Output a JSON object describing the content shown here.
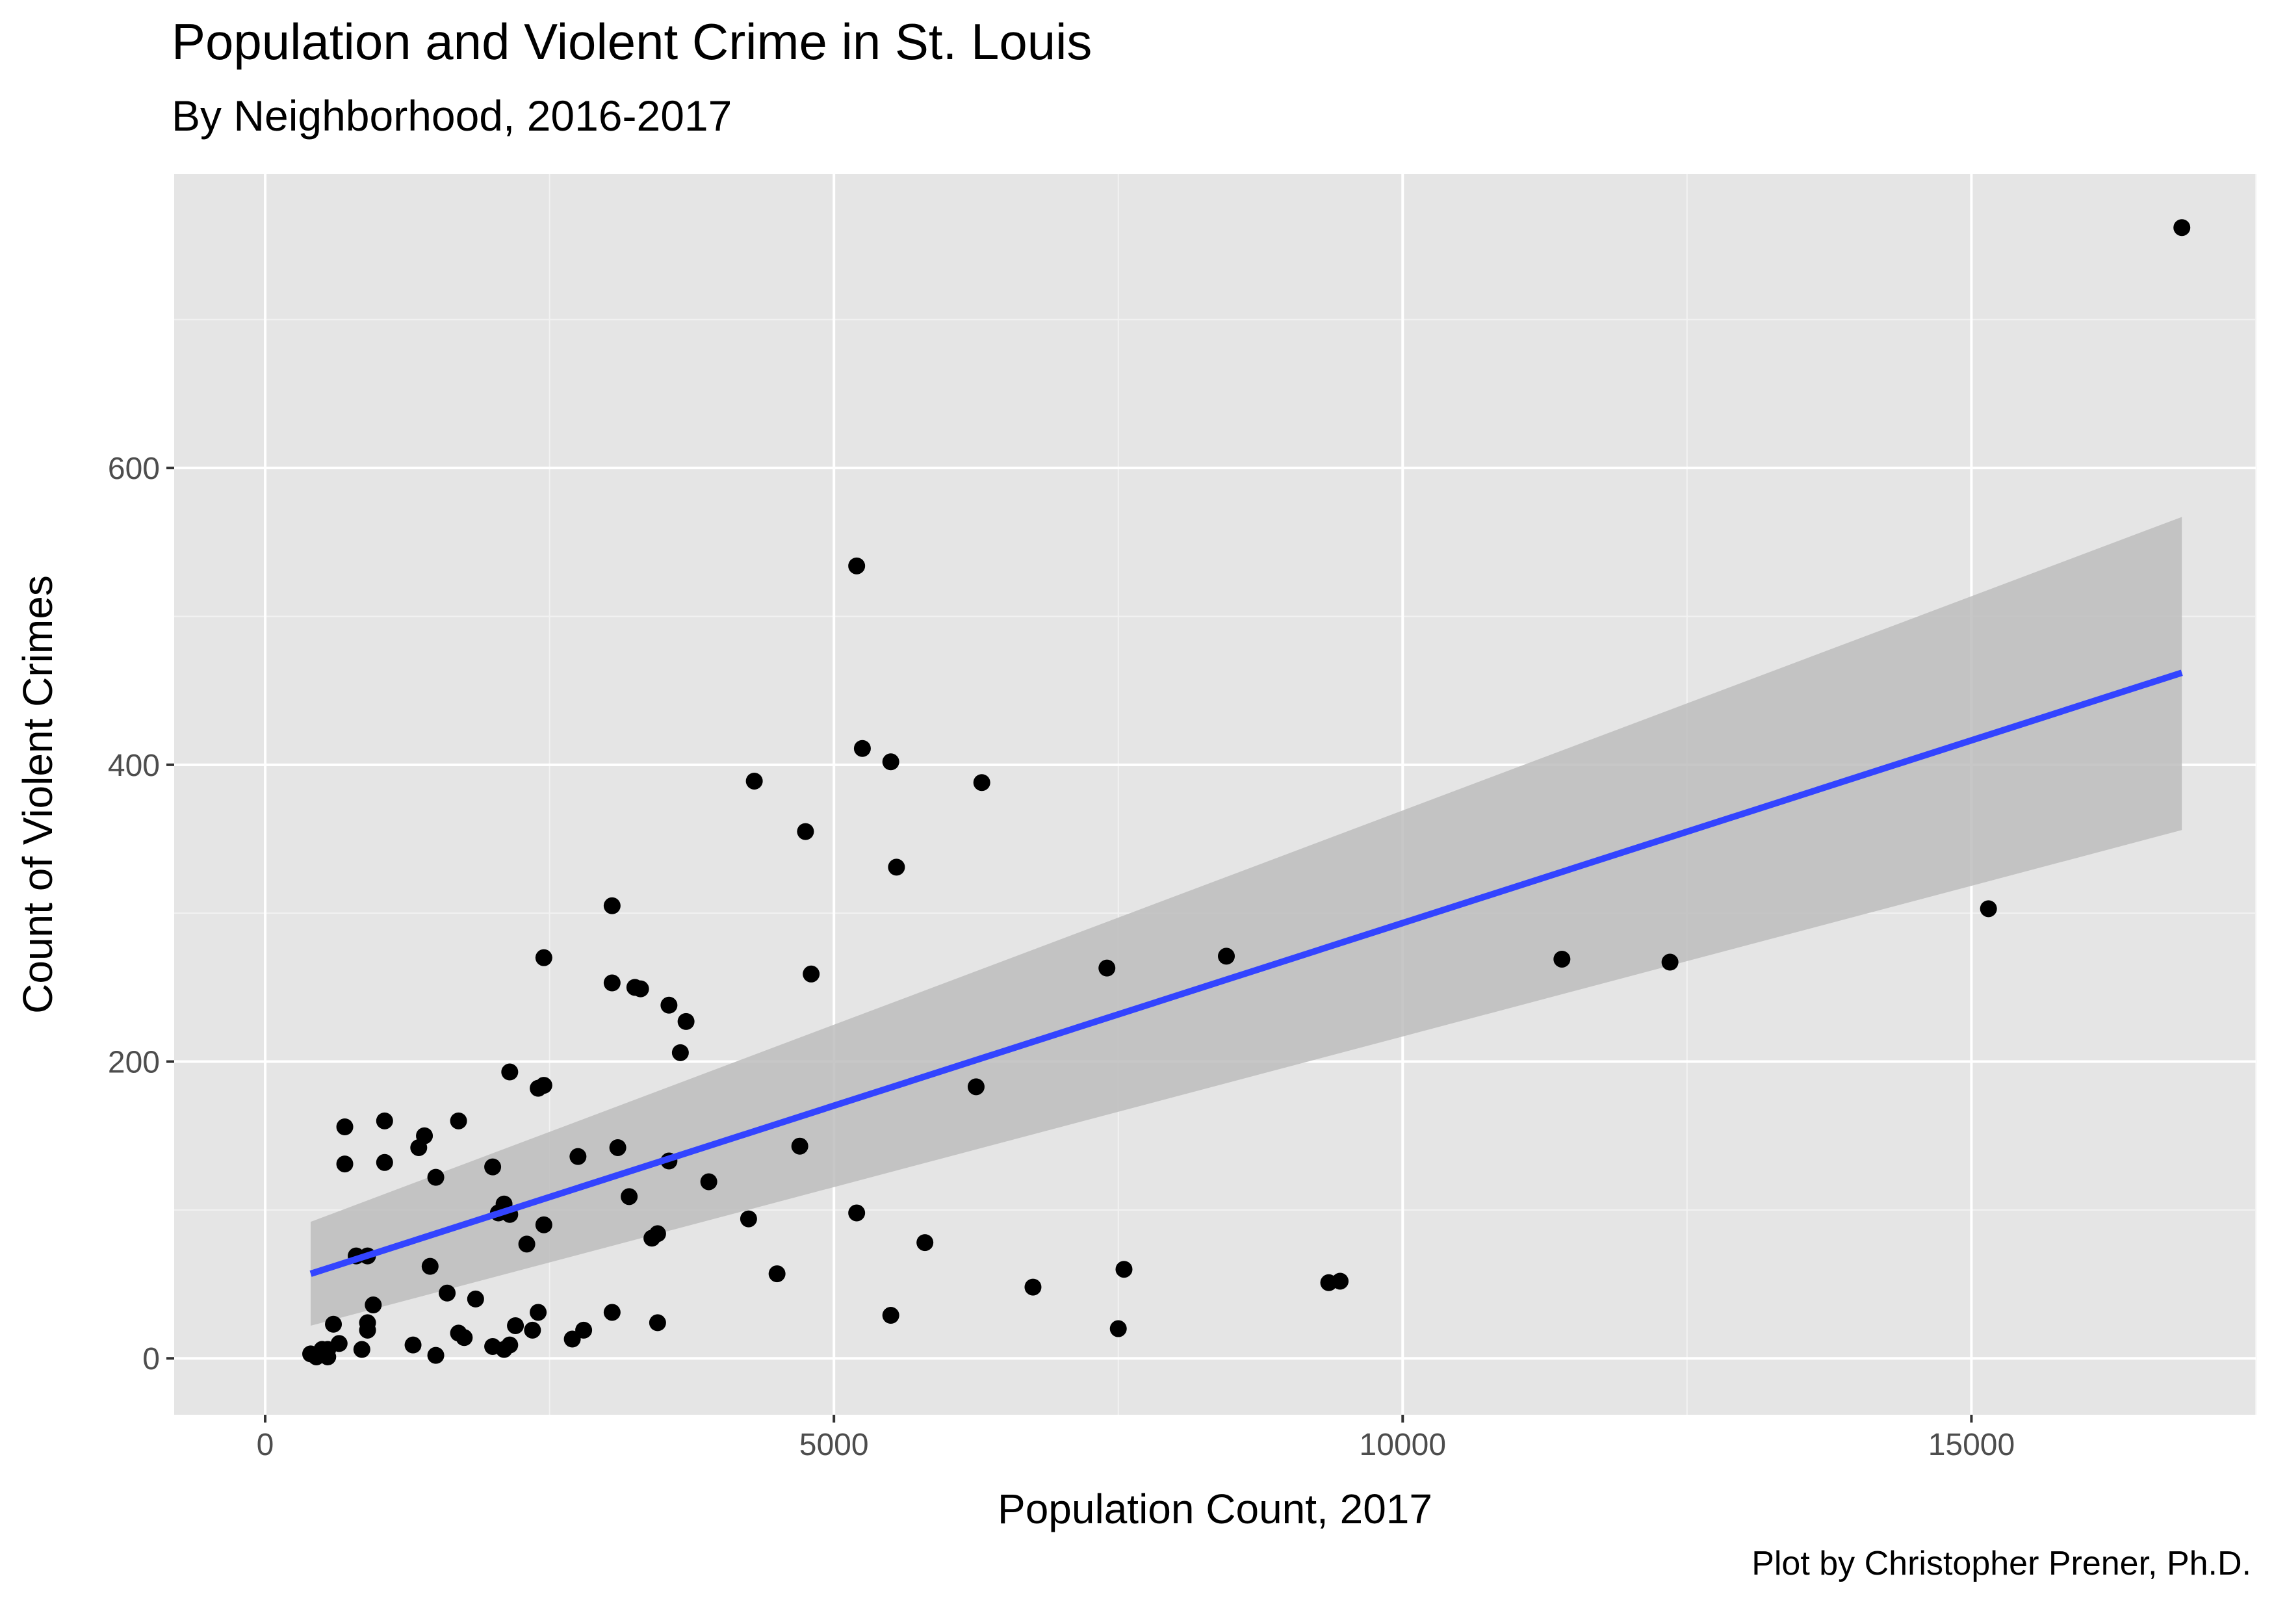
{
  "chart_data": {
    "type": "scatter",
    "title": "Population and Violent Crime in St. Louis",
    "subtitle": "By Neighborhood, 2016-2017",
    "caption": "Plot by Christopher Prener, Ph.D.",
    "xlabel": "Population Count, 2017",
    "ylabel": "Count of Violent Crimes",
    "xlim": [
      -800,
      17500
    ],
    "ylim": [
      -38,
      798
    ],
    "x_ticks": [
      0,
      5000,
      10000,
      15000
    ],
    "x_tick_labels": [
      "0",
      "5000",
      "10000",
      "15000"
    ],
    "y_ticks": [
      0,
      200,
      400,
      600
    ],
    "y_tick_labels": [
      "0",
      "200",
      "400",
      "600"
    ],
    "grid": true,
    "background": "#e5e5e5",
    "point_color": "#000000",
    "line_color": "#3344ff",
    "band_color": "#bdbdbd",
    "regression": {
      "x": [
        400,
        16850
      ],
      "y": [
        57,
        462
      ],
      "ci_lower": [
        22,
        356
      ],
      "ci_upper": [
        92,
        567
      ]
    },
    "points": [
      [
        16850,
        762
      ],
      [
        15150,
        303
      ],
      [
        12350,
        267
      ],
      [
        11400,
        269
      ],
      [
        8450,
        271
      ],
      [
        7400,
        263
      ],
      [
        9350,
        51
      ],
      [
        9450,
        52
      ],
      [
        7550,
        60
      ],
      [
        7500,
        20
      ],
      [
        6750,
        48
      ],
      [
        6300,
        388
      ],
      [
        6250,
        183
      ],
      [
        5800,
        78
      ],
      [
        5200,
        534
      ],
      [
        5250,
        411
      ],
      [
        5500,
        402
      ],
      [
        5550,
        331
      ],
      [
        5200,
        98
      ],
      [
        5500,
        29
      ],
      [
        4750,
        355
      ],
      [
        4800,
        259
      ],
      [
        4700,
        143
      ],
      [
        4500,
        57
      ],
      [
        4300,
        389
      ],
      [
        4250,
        94
      ],
      [
        3900,
        119
      ],
      [
        3700,
        227
      ],
      [
        3650,
        206
      ],
      [
        3550,
        238
      ],
      [
        3550,
        133
      ],
      [
        3450,
        84
      ],
      [
        3400,
        81
      ],
      [
        3450,
        24
      ],
      [
        3300,
        249
      ],
      [
        3250,
        250
      ],
      [
        3200,
        109
      ],
      [
        3100,
        142
      ],
      [
        3050,
        305
      ],
      [
        3050,
        253
      ],
      [
        3050,
        31
      ],
      [
        2750,
        136
      ],
      [
        2800,
        19
      ],
      [
        2700,
        13
      ],
      [
        2450,
        270
      ],
      [
        2450,
        184
      ],
      [
        2400,
        182
      ],
      [
        2450,
        90
      ],
      [
        2400,
        31
      ],
      [
        2350,
        19
      ],
      [
        2300,
        77
      ],
      [
        2200,
        22
      ],
      [
        2150,
        193
      ],
      [
        2150,
        97
      ],
      [
        2100,
        104
      ],
      [
        2050,
        98
      ],
      [
        2150,
        9
      ],
      [
        2100,
        6
      ],
      [
        2000,
        8
      ],
      [
        2000,
        129
      ],
      [
        1850,
        40
      ],
      [
        1700,
        160
      ],
      [
        1700,
        17
      ],
      [
        1750,
        14
      ],
      [
        1600,
        44
      ],
      [
        1450,
        62
      ],
      [
        1500,
        122
      ],
      [
        1400,
        150
      ],
      [
        1350,
        142
      ],
      [
        1300,
        9
      ],
      [
        1500,
        2
      ],
      [
        1050,
        160
      ],
      [
        1050,
        132
      ],
      [
        950,
        36
      ],
      [
        900,
        69
      ],
      [
        800,
        69
      ],
      [
        900,
        24
      ],
      [
        900,
        19
      ],
      [
        850,
        6
      ],
      [
        700,
        156
      ],
      [
        700,
        131
      ],
      [
        650,
        10
      ],
      [
        600,
        23
      ],
      [
        550,
        6
      ],
      [
        550,
        1
      ],
      [
        500,
        6
      ],
      [
        450,
        1
      ],
      [
        400,
        3
      ]
    ]
  }
}
